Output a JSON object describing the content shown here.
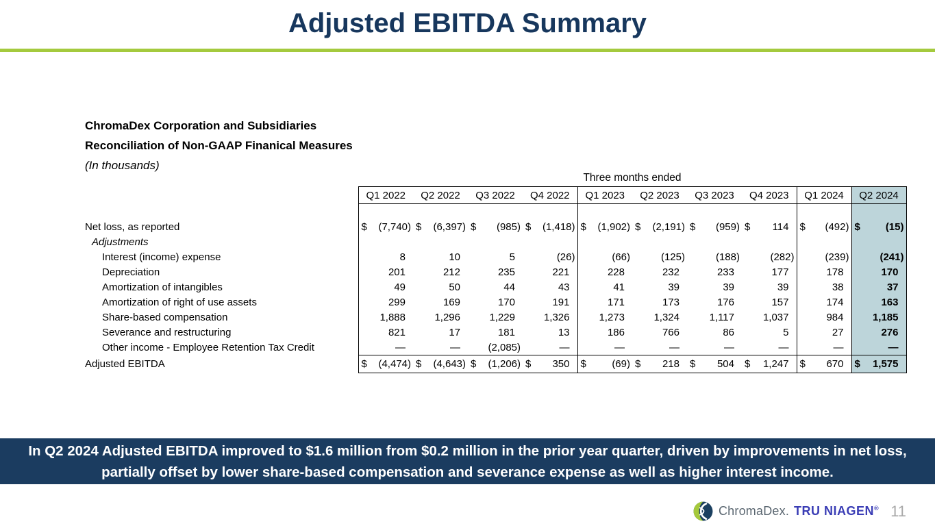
{
  "title": "Adjusted EBITDA Summary",
  "intro": {
    "line1": "ChromaDex Corporation and Subsidiaries",
    "line2": "Reconciliation of Non-GAAP Finanical Measures",
    "line3": "(In thousands)"
  },
  "table": {
    "span_header": "Three months ended",
    "columns": [
      "Q1 2022",
      "Q2 2022",
      "Q3 2022",
      "Q4 2022",
      "Q1 2023",
      "Q2 2023",
      "Q3 2023",
      "Q4 2023",
      "Q1 2024",
      "Q2 2024"
    ],
    "group_border_cols": [
      0,
      4,
      8,
      9
    ],
    "highlight_col": 9,
    "rows": [
      {
        "label": "Net loss, as reported",
        "indent": 0,
        "dollar": true,
        "values": [
          "(7,740)",
          "(6,397)",
          "(985)",
          "(1,418)",
          "(1,902)",
          "(2,191)",
          "(959)",
          "114",
          "(492)",
          "(15)"
        ]
      },
      {
        "label": "Adjustments",
        "indent": 1,
        "italic": true,
        "values": []
      },
      {
        "label": "Interest (income) expense",
        "indent": 2,
        "values": [
          "8",
          "10",
          "5",
          "(26)",
          "(66)",
          "(125)",
          "(188)",
          "(282)",
          "(239)",
          "(241)"
        ]
      },
      {
        "label": "Depreciation",
        "indent": 2,
        "values": [
          "201",
          "212",
          "235",
          "221",
          "228",
          "232",
          "233",
          "177",
          "178",
          "170"
        ]
      },
      {
        "label": "Amortization of intangibles",
        "indent": 2,
        "values": [
          "49",
          "50",
          "44",
          "43",
          "41",
          "39",
          "39",
          "39",
          "38",
          "37"
        ]
      },
      {
        "label": "Amortization of right of use assets",
        "indent": 2,
        "values": [
          "299",
          "169",
          "170",
          "191",
          "171",
          "173",
          "176",
          "157",
          "174",
          "163"
        ]
      },
      {
        "label": "Share-based compensation",
        "indent": 2,
        "values": [
          "1,888",
          "1,296",
          "1,229",
          "1,326",
          "1,273",
          "1,324",
          "1,117",
          "1,037",
          "984",
          "1,185"
        ]
      },
      {
        "label": "Severance and restructuring",
        "indent": 2,
        "values": [
          "821",
          "17",
          "181",
          "13",
          "186",
          "766",
          "86",
          "5",
          "27",
          "276"
        ]
      },
      {
        "label": "Other income - Employee Retention Tax Credit",
        "indent": 2,
        "values": [
          "—",
          "—",
          "(2,085)",
          "—",
          "—",
          "—",
          "—",
          "—",
          "—",
          "—"
        ]
      },
      {
        "label": "Adjusted EBITDA",
        "indent": 0,
        "dollar": true,
        "total": true,
        "values": [
          "(4,474)",
          "(4,643)",
          "(1,206)",
          "350",
          "(69)",
          "218",
          "504",
          "1,247",
          "670",
          "1,575"
        ]
      }
    ]
  },
  "banner": {
    "text": "In Q2 2024 Adjusted EBITDA improved to $1.6 million from $0.2 million in the prior year quarter, driven by improvements in net loss, partially offset by lower share-based compensation and severance expense as well as higher interest income."
  },
  "footer": {
    "brand": "ChromaDex.",
    "brand2": "TRU NIAGEN",
    "reg": "®",
    "page_number": "11"
  },
  "colors": {
    "title_navy": "#17375d",
    "rule_green": "#a4ca3e",
    "banner_navy": "#1b3c60",
    "highlight_blue": "#bdd5da",
    "logo_green": "#a5c93b",
    "logo_navy": "#1b4060",
    "tru_niagen_blue": "#3a3db5",
    "page_number_gray": "#a9a9a9"
  }
}
